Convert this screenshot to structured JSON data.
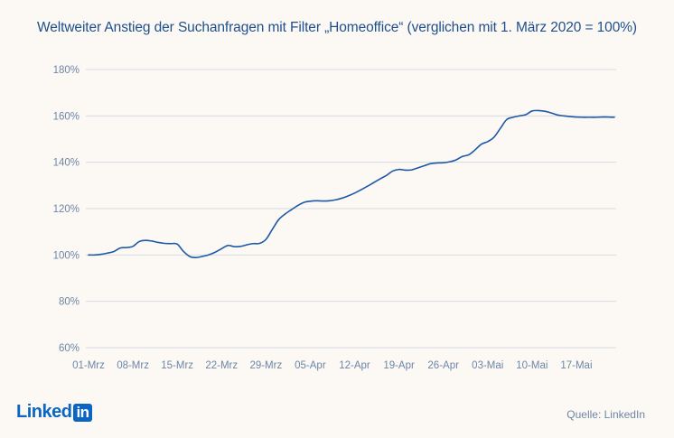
{
  "title": "Weltweiter Anstieg der Suchanfragen mit Filter „Homeoffice“ (verglichen mit 1. März 2020 = 100%)",
  "logo": {
    "text": "Linked",
    "box": "in"
  },
  "source": "Quelle: LinkedIn",
  "colors": {
    "line": "#1e58a6",
    "title": "#1e4f8c",
    "ticks": "#6d86a6",
    "grid": "#d5dbe3",
    "background": "#fcf9f5",
    "logo": "#0a66c2"
  },
  "chart_data": {
    "type": "line",
    "title": "Weltweiter Anstieg der Suchanfragen mit Filter „Homeoffice“ (verglichen mit 1. März 2020 = 100%)",
    "xlabel": "",
    "ylabel": "",
    "ylim": [
      60,
      180
    ],
    "y_ticks": [
      60,
      80,
      100,
      120,
      140,
      160,
      180
    ],
    "y_tick_labels": [
      "60%",
      "80%",
      "100%",
      "120%",
      "140%",
      "160%",
      "180%"
    ],
    "x_ticks": [
      0,
      7,
      14,
      21,
      28,
      35,
      42,
      49,
      56,
      63,
      70,
      77
    ],
    "x_tick_labels": [
      "01-Mrz",
      "08-Mrz",
      "15-Mrz",
      "22-Mrz",
      "29-Mrz",
      "05-Apr",
      "12-Apr",
      "19-Apr",
      "26-Apr",
      "03-Mai",
      "10-Mai",
      "17-Mai"
    ],
    "grid": "horizontal",
    "legend": "none",
    "series": [
      {
        "x": [
          0,
          1,
          2,
          3,
          4,
          5,
          6,
          7,
          8,
          9,
          10,
          11,
          12,
          13,
          14,
          15,
          16,
          17,
          18,
          19,
          20,
          21,
          22,
          23,
          24,
          25,
          26,
          27,
          28,
          29,
          30,
          31,
          32,
          33,
          34,
          35,
          36,
          37,
          38,
          39,
          40,
          41,
          42,
          43,
          44,
          45,
          46,
          47,
          48,
          49,
          50,
          51,
          52,
          53,
          54,
          55,
          56,
          57,
          58,
          59,
          60,
          61,
          62,
          63,
          64,
          65,
          66,
          67,
          68,
          69,
          70,
          71,
          72,
          73,
          74,
          75,
          76,
          77,
          78,
          79,
          80,
          81,
          82,
          83
        ],
        "values": [
          100,
          100,
          100.3,
          100.8,
          101.5,
          103,
          103.2,
          103.7,
          105.8,
          106.3,
          106,
          105.4,
          105,
          104.9,
          104.7,
          101.5,
          99.3,
          98.9,
          99.4,
          100.1,
          101.2,
          102.7,
          104.1,
          103.6,
          103.7,
          104.4,
          104.9,
          105,
          106.7,
          111,
          115.2,
          117.6,
          119.5,
          121.3,
          122.7,
          123.2,
          123.4,
          123.3,
          123.4,
          123.8,
          124.5,
          125.5,
          126.7,
          128.1,
          129.6,
          131.2,
          132.8,
          134.3,
          136.2,
          136.9,
          136.6,
          136.7,
          137.6,
          138.5,
          139.4,
          139.7,
          139.8,
          140.2,
          141,
          142.5,
          143.2,
          145.3,
          147.8,
          148.9,
          150.8,
          154.6,
          158.4,
          159.4,
          160,
          160.5,
          162.1,
          162.3,
          162,
          161.3,
          160.4,
          160,
          159.7,
          159.5,
          159.4,
          159.4,
          159.4,
          159.5,
          159.5,
          159.4
        ]
      }
    ]
  }
}
